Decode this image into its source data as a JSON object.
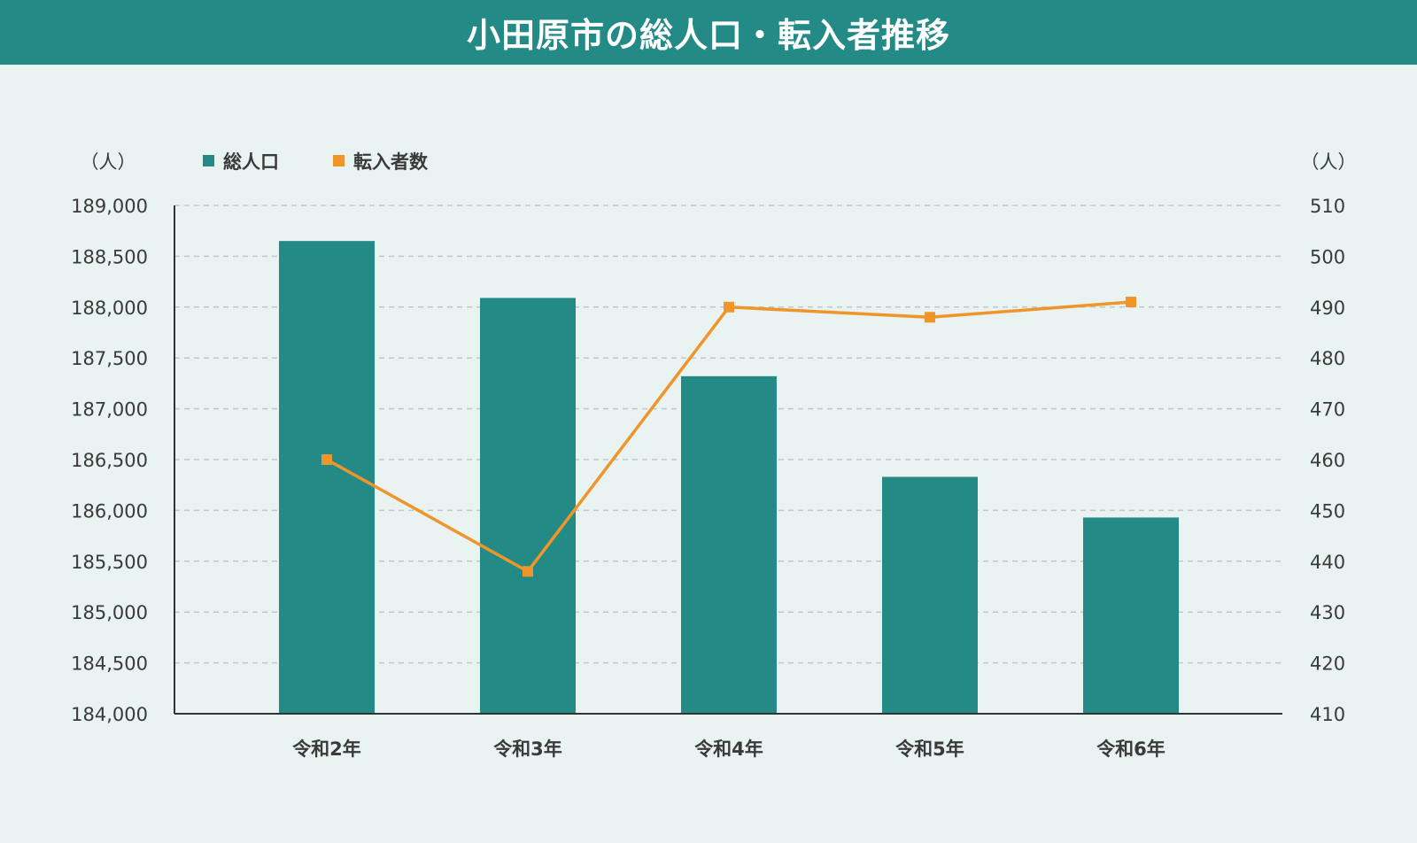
{
  "title": "小田原市の総人口・転入者推移",
  "colors": {
    "header_bg": "#238a86",
    "bar": "#238a86",
    "line": "#f0952a",
    "background": "#e9f3f1",
    "grid": "#bfc9c7"
  },
  "chart_data": {
    "type": "bar",
    "categories": [
      "令和2年",
      "令和3年",
      "令和4年",
      "令和5年",
      "令和6年"
    ],
    "left_axis": {
      "unit": "（人）",
      "ylim": [
        184000,
        189000
      ],
      "ticks": [
        184000,
        184500,
        185000,
        185500,
        186000,
        186500,
        187000,
        187500,
        188000,
        188500,
        189000
      ],
      "tick_labels": [
        "184,000",
        "184,500",
        "185,000",
        "185,500",
        "186,000",
        "186,500",
        "187,000",
        "187,500",
        "188,000",
        "188,500",
        "189,000"
      ]
    },
    "right_axis": {
      "unit": "（人）",
      "ylim": [
        410,
        510
      ],
      "ticks": [
        410,
        420,
        430,
        440,
        450,
        460,
        470,
        480,
        490,
        500,
        510
      ],
      "tick_labels": [
        "410",
        "420",
        "430",
        "440",
        "450",
        "460",
        "470",
        "480",
        "490",
        "500",
        "510"
      ]
    },
    "series": [
      {
        "name": "総人口",
        "type": "bar",
        "axis": "left",
        "values": [
          188650,
          188090,
          187320,
          186330,
          185930
        ]
      },
      {
        "name": "転入者数",
        "type": "line",
        "axis": "right",
        "values": [
          460,
          438,
          490,
          488,
          491
        ]
      }
    ],
    "grid": true,
    "legend_position": "top-left"
  }
}
